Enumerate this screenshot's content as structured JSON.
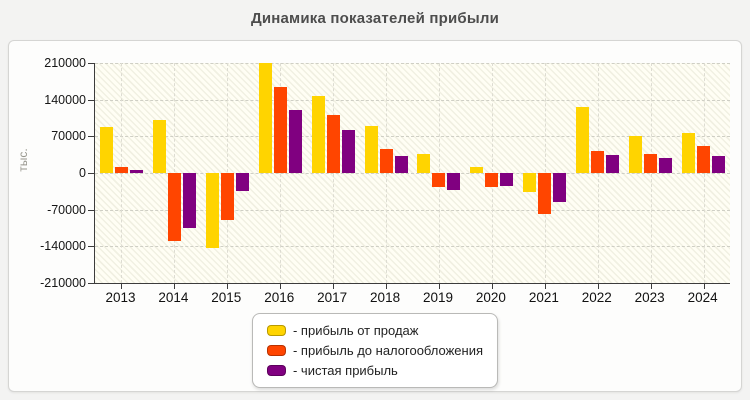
{
  "title": "Динамика показателей прибыли",
  "axes": {
    "y_label": "тыс.",
    "y_ticks": [
      "210000",
      "140000",
      "70000",
      "0",
      "-70000",
      "-140000",
      "-210000"
    ],
    "x_labels": [
      "2013",
      "2014",
      "2015",
      "2016",
      "2017",
      "2018",
      "2019",
      "2020",
      "2021",
      "2022",
      "2023",
      "2024"
    ]
  },
  "legend": {
    "items": [
      {
        "label": "- прибыль от продаж",
        "color": "#ffd400"
      },
      {
        "label": "- прибыль до налогообложения",
        "color": "#ff4500"
      },
      {
        "label": "- чистая прибыль",
        "color": "#800080"
      }
    ]
  },
  "colors": {
    "sales_profit": "#ffd400",
    "pretax_profit": "#ff4500",
    "net_profit": "#800080",
    "panel_background": "#fdfdfc",
    "plot_background": "#fffef4",
    "page_background": "#f3f3f2"
  },
  "chart_data": {
    "type": "bar",
    "title": "Динамика показателей прибыли",
    "xlabel": "",
    "ylabel": "тыс.",
    "categories": [
      "2013",
      "2014",
      "2015",
      "2016",
      "2017",
      "2018",
      "2019",
      "2020",
      "2021",
      "2022",
      "2023",
      "2024"
    ],
    "series": [
      {
        "name": "прибыль от продаж",
        "color": "#ffd400",
        "values": [
          87000,
          101000,
          -143000,
          210000,
          148000,
          89000,
          36000,
          11000,
          -37000,
          127000,
          70000,
          77000
        ]
      },
      {
        "name": "прибыль до налогообложения",
        "color": "#ff4500",
        "values": [
          11000,
          -130000,
          -89000,
          165000,
          111000,
          46000,
          -27000,
          -27000,
          -78000,
          42000,
          37000,
          51000
        ]
      },
      {
        "name": "чистая прибыль",
        "color": "#800080",
        "values": [
          6000,
          -104000,
          -35000,
          121000,
          83000,
          33000,
          -33000,
          -24000,
          -56000,
          34000,
          29000,
          33000
        ]
      }
    ],
    "ylim": [
      -210000,
      210000
    ],
    "y_tick_step": 70000,
    "grid": true,
    "legend_position": "bottom-center"
  }
}
